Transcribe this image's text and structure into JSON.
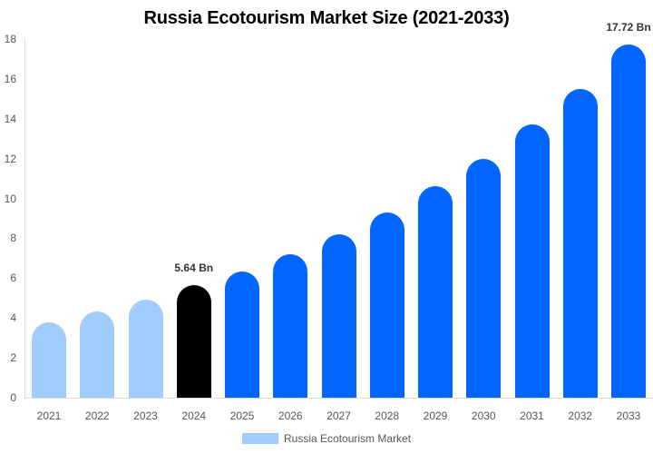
{
  "title": "Russia Ecotourism Market Size (2021-2033)",
  "colors": {
    "historical": "#a0cdfb",
    "current": "#000000",
    "forecast": "#0066ff"
  },
  "legend": {
    "label": "Russia Ecotourism Market"
  },
  "yticks": [
    "0",
    "2",
    "4",
    "6",
    "8",
    "10",
    "12",
    "14",
    "16",
    "18"
  ],
  "annotations": {
    "a2024": "5.64 Bn",
    "a2033": "17.72 Bn"
  },
  "chart_data": {
    "type": "bar",
    "title": "Russia Ecotourism Market Size (2021-2033)",
    "xlabel": "",
    "ylabel": "",
    "ylim": [
      0,
      18
    ],
    "grid": false,
    "legend_position": "bottom",
    "categories": [
      "2021",
      "2022",
      "2023",
      "2024",
      "2025",
      "2026",
      "2027",
      "2028",
      "2029",
      "2030",
      "2031",
      "2032",
      "2033"
    ],
    "series": [
      {
        "name": "Russia Ecotourism Market",
        "values": [
          3.78,
          4.33,
          4.92,
          5.64,
          6.34,
          7.2,
          8.2,
          9.3,
          10.6,
          12.0,
          13.7,
          15.5,
          17.72
        ]
      }
    ],
    "bar_colors": [
      "#a0cdfb",
      "#a0cdfb",
      "#a0cdfb",
      "#000000",
      "#0066ff",
      "#0066ff",
      "#0066ff",
      "#0066ff",
      "#0066ff",
      "#0066ff",
      "#0066ff",
      "#0066ff",
      "#0066ff"
    ],
    "annotations": [
      {
        "category": "2024",
        "text": "5.64 Bn"
      },
      {
        "category": "2033",
        "text": "17.72 Bn"
      }
    ]
  }
}
